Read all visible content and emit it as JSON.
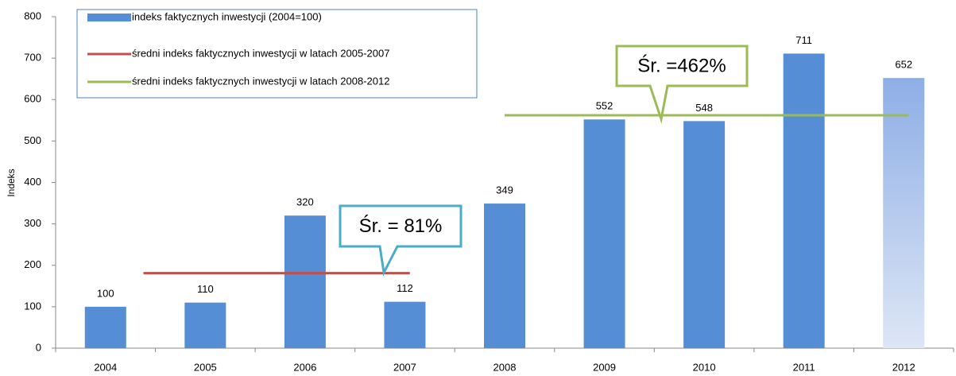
{
  "chart_data": {
    "type": "bar",
    "categories": [
      "2004",
      "2005",
      "2006",
      "2007",
      "2008",
      "2009",
      "2010",
      "2011",
      "2012"
    ],
    "ylabel": "Indeks",
    "ylim": [
      0,
      800
    ],
    "yticks": [
      0,
      100,
      200,
      300,
      400,
      500,
      600,
      700,
      800
    ],
    "grid": false,
    "legend": "top-left",
    "series": [
      {
        "name": "indeks faktycznych inwestycji (2004=100)",
        "type": "bar",
        "color": "#558ed5",
        "values": [
          100,
          110,
          320,
          112,
          349,
          552,
          548,
          711,
          652
        ]
      },
      {
        "name": "średni indeks faktycznych inwestycji w latach 2005-2007",
        "type": "line",
        "color": "#c0504d",
        "values": [
          null,
          181,
          181,
          181,
          null,
          null,
          null,
          null,
          null
        ]
      },
      {
        "name": "średni indeks faktycznych inwestycji w latach 2008-2012",
        "type": "line",
        "color": "#9bbb59",
        "values": [
          null,
          null,
          null,
          null,
          562,
          562,
          562,
          562,
          562
        ]
      }
    ],
    "annotations": [
      {
        "text": "Śr. = 81%",
        "color": "#4bacc6"
      },
      {
        "text": "Śr. =462%",
        "color": "#9bbb59"
      }
    ]
  }
}
